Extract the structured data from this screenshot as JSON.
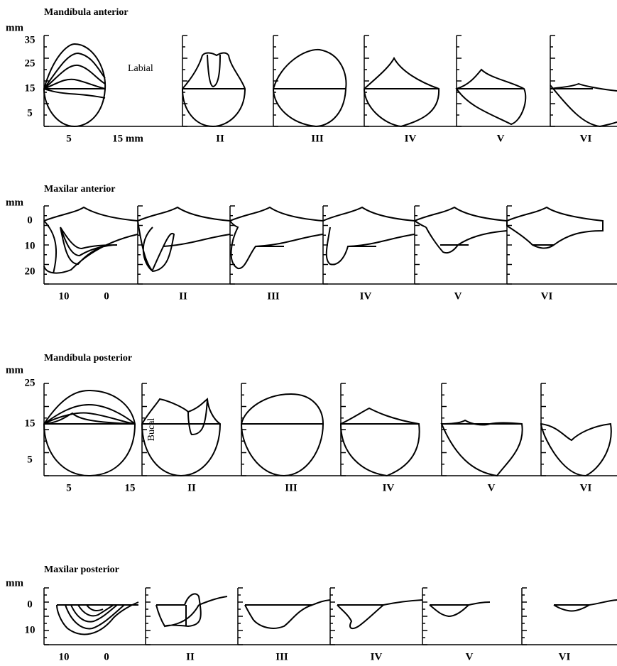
{
  "panels": [
    {
      "title": "Mandíbula anterior",
      "unit": "mm",
      "y_labels": [
        "35",
        "25",
        "15",
        "5"
      ],
      "x_labels": [
        "5",
        "15 mm"
      ],
      "classes": [
        "II",
        "III",
        "IV",
        "V",
        "VI"
      ],
      "side_label": "Labial"
    },
    {
      "title": "Maxilar anterior",
      "unit": "mm",
      "y_labels": [
        "0",
        "10",
        "20"
      ],
      "x_labels": [
        "10",
        "0"
      ],
      "classes": [
        "II",
        "III",
        "IV",
        "V",
        "VI"
      ]
    },
    {
      "title": "Mandíbula posterior",
      "unit": "mm",
      "y_labels": [
        "25",
        "15",
        "5"
      ],
      "x_labels": [
        "5",
        "15"
      ],
      "classes": [
        "II",
        "III",
        "IV",
        "V",
        "VI"
      ],
      "side_label": "Bucal"
    },
    {
      "title": "Maxilar posterior",
      "unit": "mm",
      "y_labels": [
        "0",
        "10"
      ],
      "x_labels": [
        "10",
        "0"
      ],
      "classes": [
        "II",
        "III",
        "IV",
        "V",
        "VI"
      ]
    }
  ]
}
